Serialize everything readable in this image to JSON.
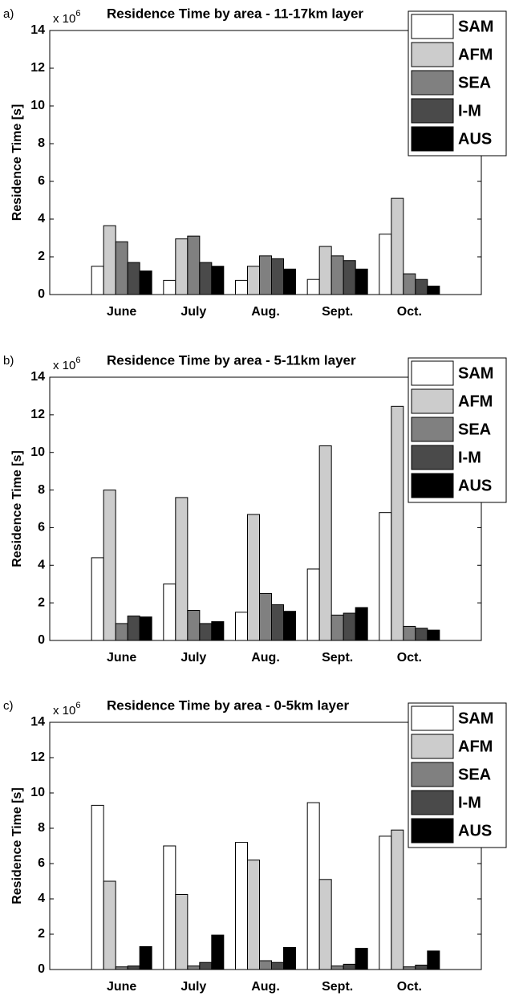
{
  "chart_data": [
    {
      "type": "bar",
      "panel_label": "a)",
      "scale_label": {
        "base": "x 10",
        "exponent": "6"
      },
      "title": "Residence Time by area - 11-17km layer",
      "y_label": "Residence Time [s]",
      "categories": [
        "June",
        "July",
        "Aug.",
        "Sept.",
        "Oct."
      ],
      "series": [
        {
          "name": "SAM",
          "color": "#ffffff",
          "values": [
            1.5,
            0.75,
            0.75,
            0.8,
            3.2
          ]
        },
        {
          "name": "AFM",
          "color": "#cccccc",
          "values": [
            3.65,
            2.95,
            1.5,
            2.55,
            5.1
          ]
        },
        {
          "name": "SEA",
          "color": "#808080",
          "values": [
            2.8,
            3.1,
            2.05,
            2.05,
            1.1
          ]
        },
        {
          "name": "I-M",
          "color": "#4a4a4a",
          "values": [
            1.7,
            1.7,
            1.9,
            1.8,
            0.8
          ]
        },
        {
          "name": "AUS",
          "color": "#000000",
          "values": [
            1.25,
            1.5,
            1.35,
            1.35,
            0.45
          ]
        }
      ],
      "ylim": [
        0,
        14
      ],
      "yticks": [
        0,
        2,
        4,
        6,
        8,
        10,
        12,
        14
      ],
      "legend": "upper right"
    },
    {
      "type": "bar",
      "panel_label": "b)",
      "scale_label": {
        "base": "x 10",
        "exponent": "6"
      },
      "title": "Residence Time by area - 5-11km layer",
      "y_label": "Residence Time [s]",
      "categories": [
        "June",
        "July",
        "Aug.",
        "Sept.",
        "Oct."
      ],
      "series": [
        {
          "name": "SAM",
          "color": "#ffffff",
          "values": [
            4.4,
            3.0,
            1.5,
            3.8,
            6.8
          ]
        },
        {
          "name": "AFM",
          "color": "#cccccc",
          "values": [
            8.0,
            7.6,
            6.7,
            10.35,
            12.45
          ]
        },
        {
          "name": "SEA",
          "color": "#808080",
          "values": [
            0.9,
            1.6,
            2.5,
            1.35,
            0.75
          ]
        },
        {
          "name": "I-M",
          "color": "#4a4a4a",
          "values": [
            1.3,
            0.9,
            1.9,
            1.45,
            0.65
          ]
        },
        {
          "name": "AUS",
          "color": "#000000",
          "values": [
            1.25,
            1.0,
            1.55,
            1.75,
            0.55
          ]
        }
      ],
      "ylim": [
        0,
        14
      ],
      "yticks": [
        0,
        2,
        4,
        6,
        8,
        10,
        12,
        14
      ],
      "legend": "upper right"
    },
    {
      "type": "bar",
      "panel_label": "c)",
      "scale_label": {
        "base": "x 10",
        "exponent": "6"
      },
      "title": "Residence Time by area - 0-5km layer",
      "y_label": "Residence Time [s]",
      "categories": [
        "June",
        "July",
        "Aug.",
        "Sept.",
        "Oct."
      ],
      "series": [
        {
          "name": "SAM",
          "color": "#ffffff",
          "values": [
            9.3,
            7.0,
            7.2,
            9.45,
            7.55
          ]
        },
        {
          "name": "AFM",
          "color": "#cccccc",
          "values": [
            5.0,
            4.25,
            6.2,
            5.1,
            7.9
          ]
        },
        {
          "name": "SEA",
          "color": "#808080",
          "values": [
            0.15,
            0.2,
            0.5,
            0.2,
            0.15
          ]
        },
        {
          "name": "I-M",
          "color": "#4a4a4a",
          "values": [
            0.2,
            0.4,
            0.4,
            0.3,
            0.25
          ]
        },
        {
          "name": "AUS",
          "color": "#000000",
          "values": [
            1.3,
            1.95,
            1.25,
            1.2,
            1.05
          ]
        }
      ],
      "ylim": [
        0,
        14
      ],
      "yticks": [
        0,
        2,
        4,
        6,
        8,
        10,
        12,
        14
      ],
      "legend": "upper right"
    }
  ]
}
